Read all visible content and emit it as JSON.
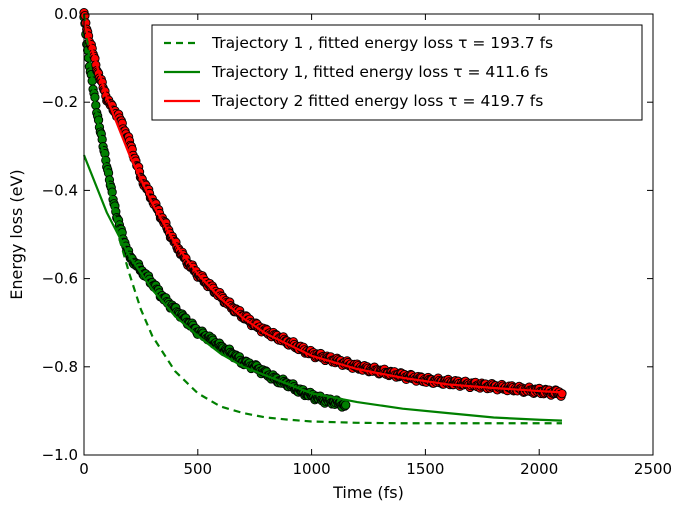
{
  "chart_data": {
    "type": "scatter",
    "title": "",
    "xlabel": "Time (fs)",
    "ylabel": "Energy loss (eV)",
    "xlim": [
      0,
      2500
    ],
    "ylim": [
      -1.0,
      0.0
    ],
    "xticks": [
      0,
      500,
      1000,
      1500,
      2000,
      2500
    ],
    "xtick_labels": [
      "0",
      "500",
      "1000",
      "1500",
      "2000",
      "2500"
    ],
    "yticks": [
      0.0,
      -0.2,
      -0.4,
      -0.6,
      -0.8,
      -1.0
    ],
    "ytick_labels": [
      "0.0",
      "−0.2",
      "−0.4",
      "−0.6",
      "−0.8",
      "−1.0"
    ],
    "grid": false,
    "legend_position": "top-right",
    "series": [
      {
        "name": "Trajectory 1 , fitted energy loss τ = 193.7 fs",
        "kind": "fit-line",
        "style": "dashed",
        "color": "#008000",
        "x": [
          0,
          50,
          100,
          150,
          200,
          250,
          300,
          400,
          500,
          600,
          700,
          800,
          900,
          1000,
          1200,
          1400,
          1600,
          1800,
          2000,
          2100
        ],
        "y": [
          0.0,
          -0.21,
          -0.37,
          -0.5,
          -0.59,
          -0.67,
          -0.73,
          -0.81,
          -0.86,
          -0.89,
          -0.905,
          -0.915,
          -0.92,
          -0.924,
          -0.927,
          -0.928,
          -0.928,
          -0.928,
          -0.928,
          -0.928
        ]
      },
      {
        "name": "Trajectory 1, fitted energy loss τ = 411.6 fs",
        "kind": "fit-line",
        "style": "solid",
        "color": "#008000",
        "x": [
          0,
          100,
          200,
          300,
          400,
          500,
          600,
          700,
          800,
          900,
          1000,
          1100,
          1200,
          1400,
          1600,
          1800,
          2000,
          2100
        ],
        "y": [
          -0.32,
          -0.45,
          -0.55,
          -0.625,
          -0.685,
          -0.73,
          -0.77,
          -0.8,
          -0.82,
          -0.84,
          -0.86,
          -0.87,
          -0.88,
          -0.895,
          -0.905,
          -0.915,
          -0.92,
          -0.922
        ]
      },
      {
        "name": "Trajectory 2 fitted energy loss τ = 419.7 fs",
        "kind": "fit-line",
        "style": "solid",
        "color": "#ff0000",
        "x": [
          0,
          100,
          200,
          300,
          400,
          500,
          600,
          700,
          800,
          900,
          1000,
          1100,
          1200,
          1400,
          1600,
          1800,
          2000,
          2100
        ],
        "y": [
          -0.02,
          -0.19,
          -0.32,
          -0.43,
          -0.52,
          -0.59,
          -0.645,
          -0.69,
          -0.725,
          -0.75,
          -0.775,
          -0.79,
          -0.805,
          -0.825,
          -0.84,
          -0.848,
          -0.855,
          -0.858
        ]
      },
      {
        "name": "",
        "kind": "markers",
        "color": "#008000",
        "x": [
          0,
          20,
          40,
          60,
          80,
          100,
          120,
          150,
          180,
          200,
          250,
          300,
          350,
          400,
          450,
          500,
          550,
          600,
          650,
          700,
          750,
          800,
          850,
          900,
          950,
          1000,
          1050,
          1100,
          1150
        ],
        "y": [
          -0.01,
          -0.1,
          -0.17,
          -0.23,
          -0.29,
          -0.34,
          -0.4,
          -0.47,
          -0.52,
          -0.55,
          -0.58,
          -0.61,
          -0.645,
          -0.67,
          -0.695,
          -0.72,
          -0.735,
          -0.755,
          -0.77,
          -0.79,
          -0.8,
          -0.815,
          -0.83,
          -0.84,
          -0.855,
          -0.865,
          -0.875,
          -0.88,
          -0.887
        ]
      },
      {
        "name": "",
        "kind": "markers",
        "color": "#ff0000",
        "x": [
          0,
          20,
          40,
          60,
          80,
          100,
          120,
          150,
          200,
          250,
          300,
          350,
          400,
          450,
          500,
          550,
          600,
          650,
          700,
          750,
          800,
          900,
          1000,
          1100,
          1200,
          1300,
          1400,
          1500,
          1600,
          1700,
          1800,
          1900,
          2000,
          2100
        ],
        "y": [
          0.0,
          -0.05,
          -0.09,
          -0.13,
          -0.16,
          -0.19,
          -0.21,
          -0.23,
          -0.29,
          -0.37,
          -0.42,
          -0.47,
          -0.52,
          -0.56,
          -0.59,
          -0.615,
          -0.64,
          -0.665,
          -0.685,
          -0.705,
          -0.72,
          -0.745,
          -0.77,
          -0.785,
          -0.8,
          -0.81,
          -0.82,
          -0.83,
          -0.835,
          -0.84,
          -0.845,
          -0.85,
          -0.855,
          -0.86
        ]
      }
    ]
  }
}
